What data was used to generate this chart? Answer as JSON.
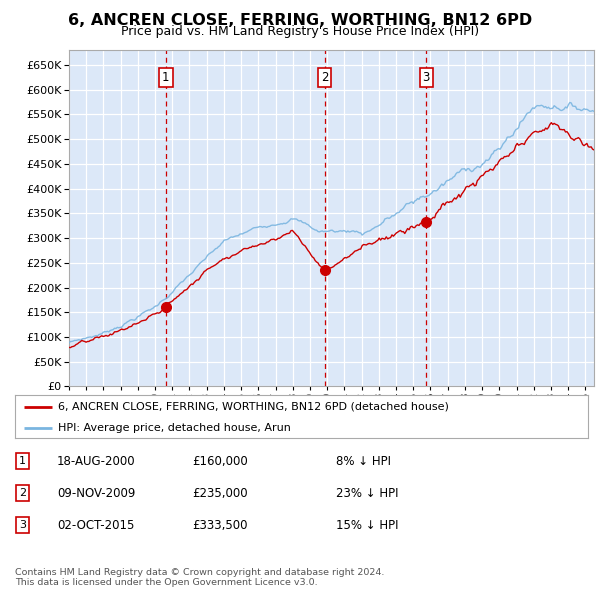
{
  "title": "6, ANCREN CLOSE, FERRING, WORTHING, BN12 6PD",
  "subtitle": "Price paid vs. HM Land Registry's House Price Index (HPI)",
  "fig_bg_color": "#f5f5f5",
  "plot_bg_color": "#dce8f8",
  "ylim": [
    0,
    680000
  ],
  "yticks": [
    0,
    50000,
    100000,
    150000,
    200000,
    250000,
    300000,
    350000,
    400000,
    450000,
    500000,
    550000,
    600000,
    650000
  ],
  "sale_dates": [
    2000.63,
    2009.86,
    2015.75
  ],
  "sale_prices": [
    160000,
    235000,
    333500
  ],
  "sale_labels": [
    "1",
    "2",
    "3"
  ],
  "hpi_color": "#7ab5e0",
  "price_color": "#cc0000",
  "dashed_line_color": "#cc0000",
  "legend_label_price": "6, ANCREN CLOSE, FERRING, WORTHING, BN12 6PD (detached house)",
  "legend_label_hpi": "HPI: Average price, detached house, Arun",
  "table_entries": [
    {
      "num": "1",
      "date": "18-AUG-2000",
      "price": "£160,000",
      "hpi": "8% ↓ HPI"
    },
    {
      "num": "2",
      "date": "09-NOV-2009",
      "price": "£235,000",
      "hpi": "23% ↓ HPI"
    },
    {
      "num": "3",
      "date": "02-OCT-2015",
      "price": "£333,500",
      "hpi": "15% ↓ HPI"
    }
  ],
  "footer": "Contains HM Land Registry data © Crown copyright and database right 2024.\nThis data is licensed under the Open Government Licence v3.0.",
  "xmin": 1995,
  "xmax": 2025.5
}
